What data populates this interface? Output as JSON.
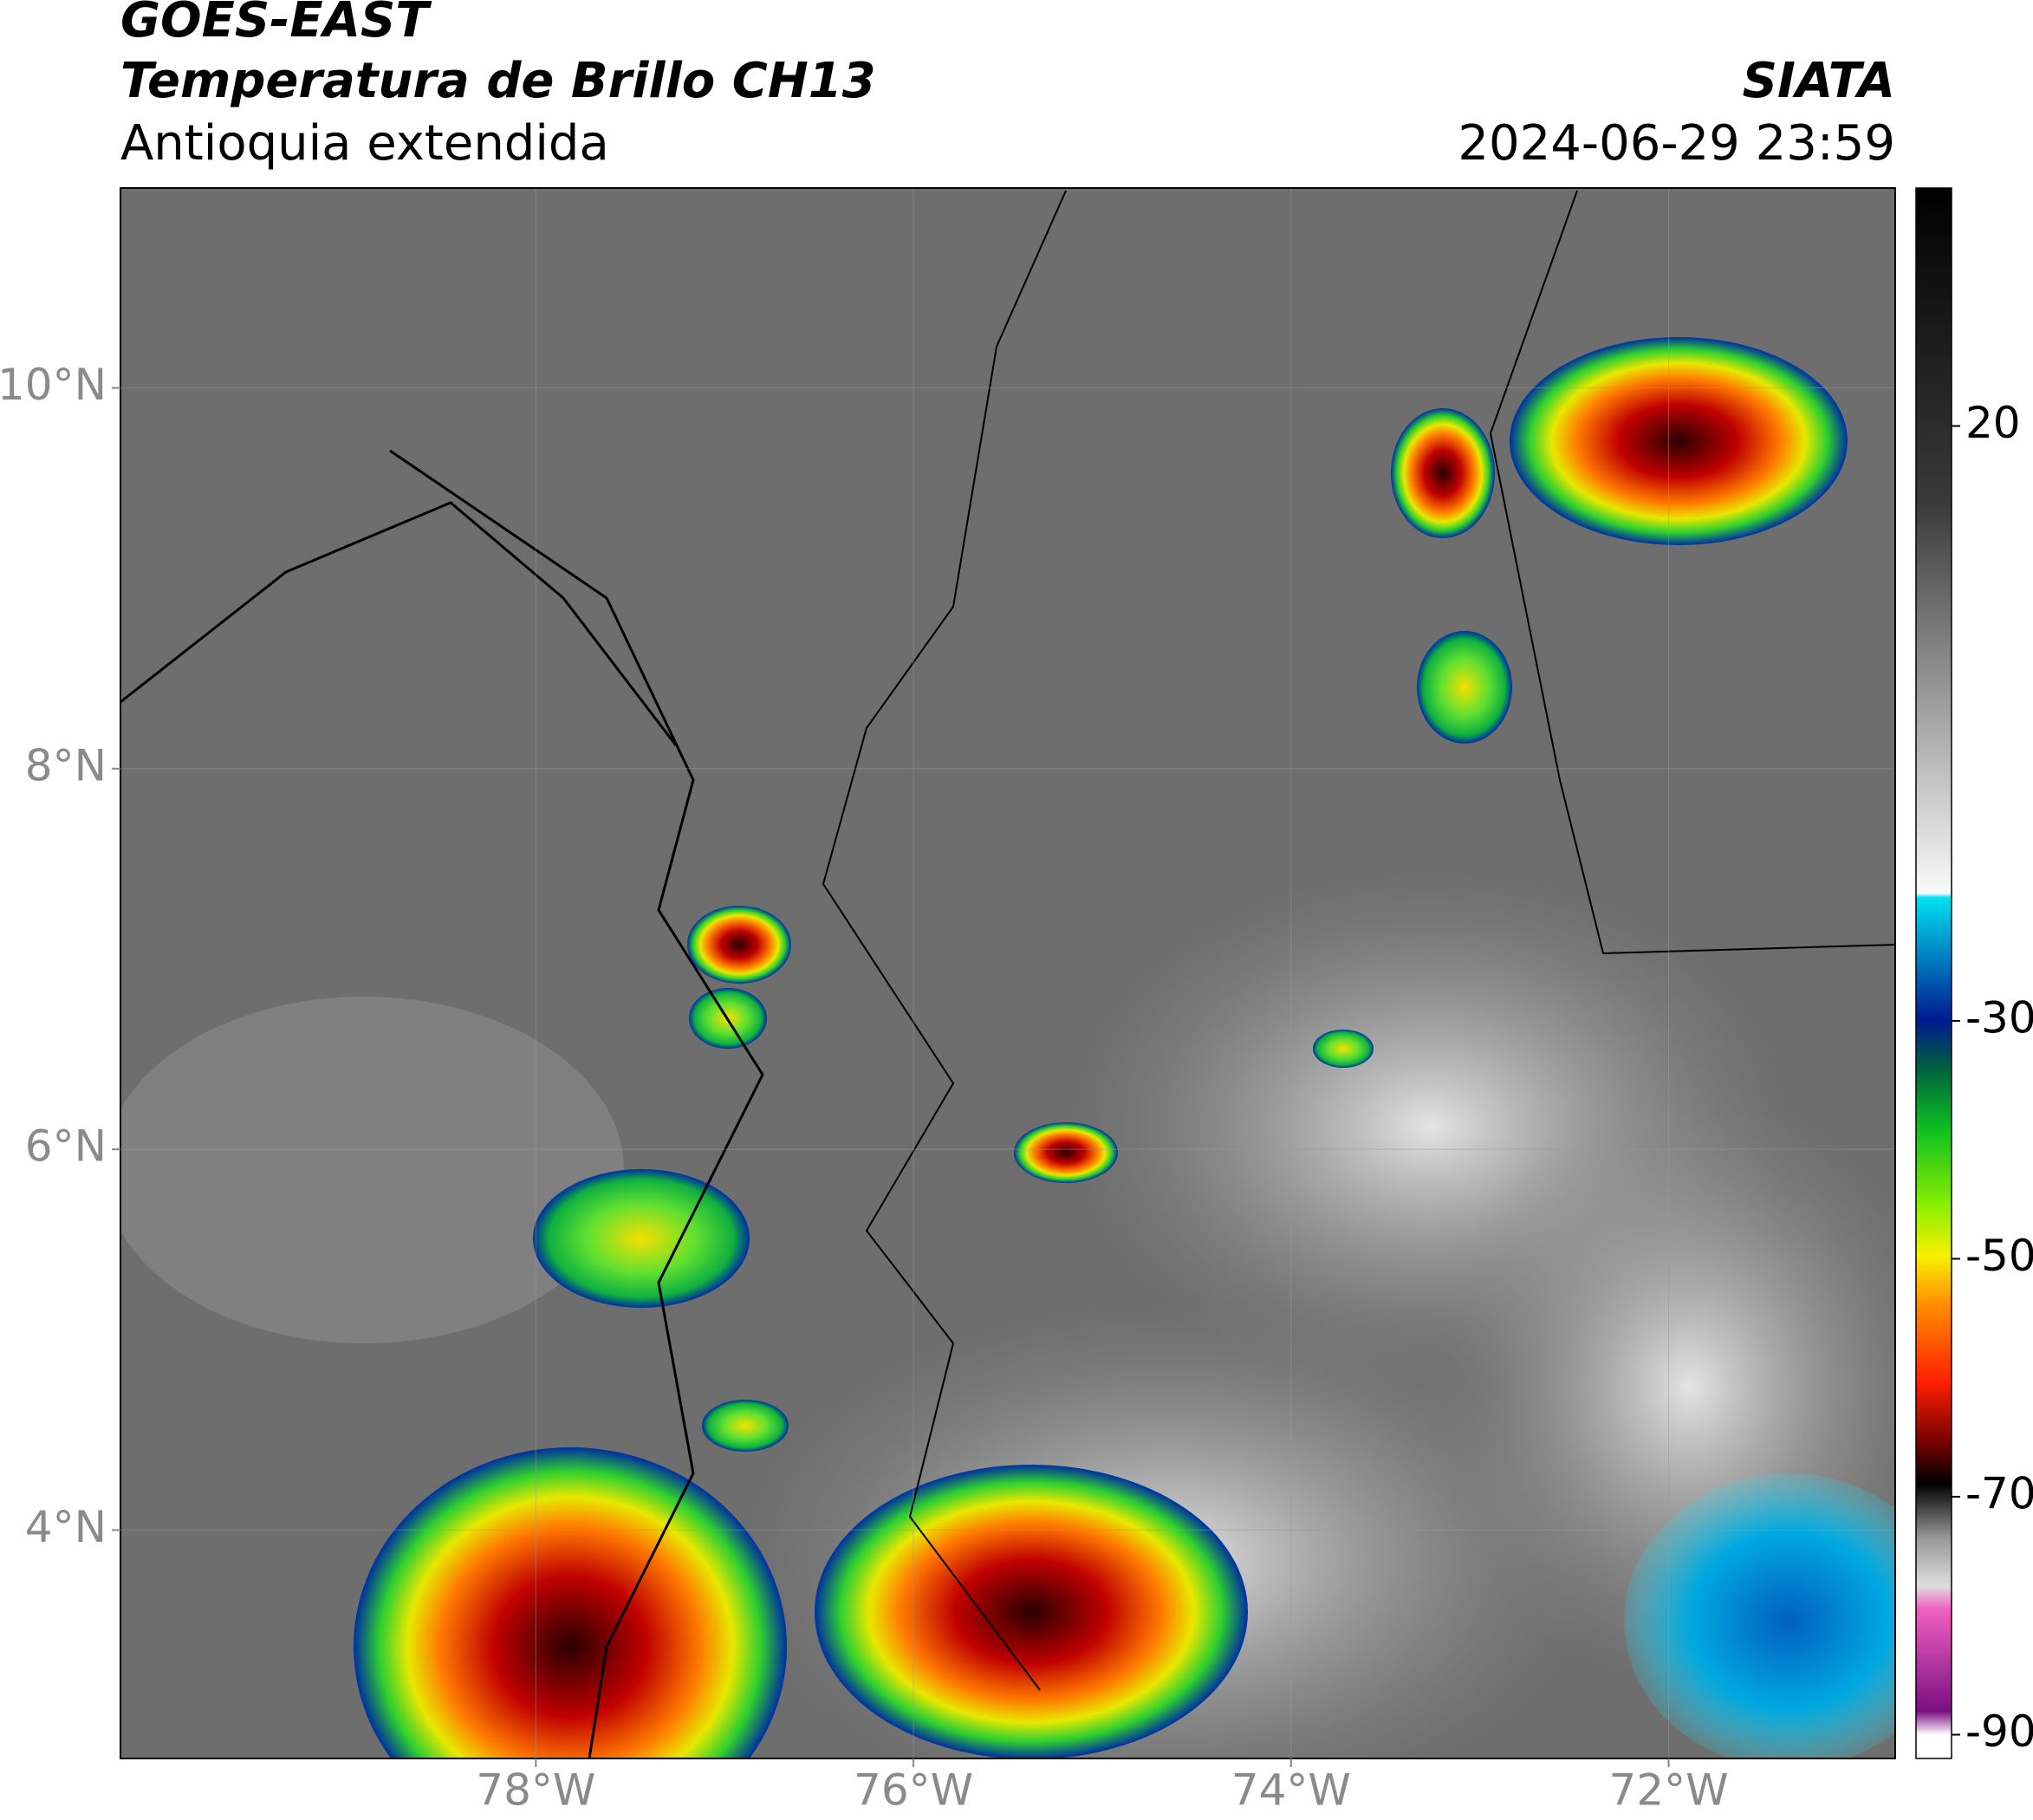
{
  "header": {
    "title": "GOES-EAST",
    "subtitle": "Temperatura de Brillo CH13",
    "region": "Antioquia extendida",
    "source": "SIATA",
    "datetime": "2024-06-29 23:59"
  },
  "map": {
    "xlim": [
      -80.2,
      -70.8
    ],
    "ylim": [
      2.8,
      11.05
    ],
    "xticks": [
      {
        "value": -78,
        "label": "78°W"
      },
      {
        "value": -76,
        "label": "76°W"
      },
      {
        "value": -74,
        "label": "74°W"
      },
      {
        "value": -72,
        "label": "72°W"
      }
    ],
    "yticks": [
      {
        "value": 4,
        "label": "4°N"
      },
      {
        "value": 6,
        "label": "6°N"
      },
      {
        "value": 8,
        "label": "8°N"
      },
      {
        "value": 10,
        "label": "10°N"
      }
    ],
    "grid": true
  },
  "colorbar": {
    "lim": [
      -92,
      40
    ],
    "ticks": [
      20,
      -30,
      -50,
      -70,
      -90
    ]
  }
}
